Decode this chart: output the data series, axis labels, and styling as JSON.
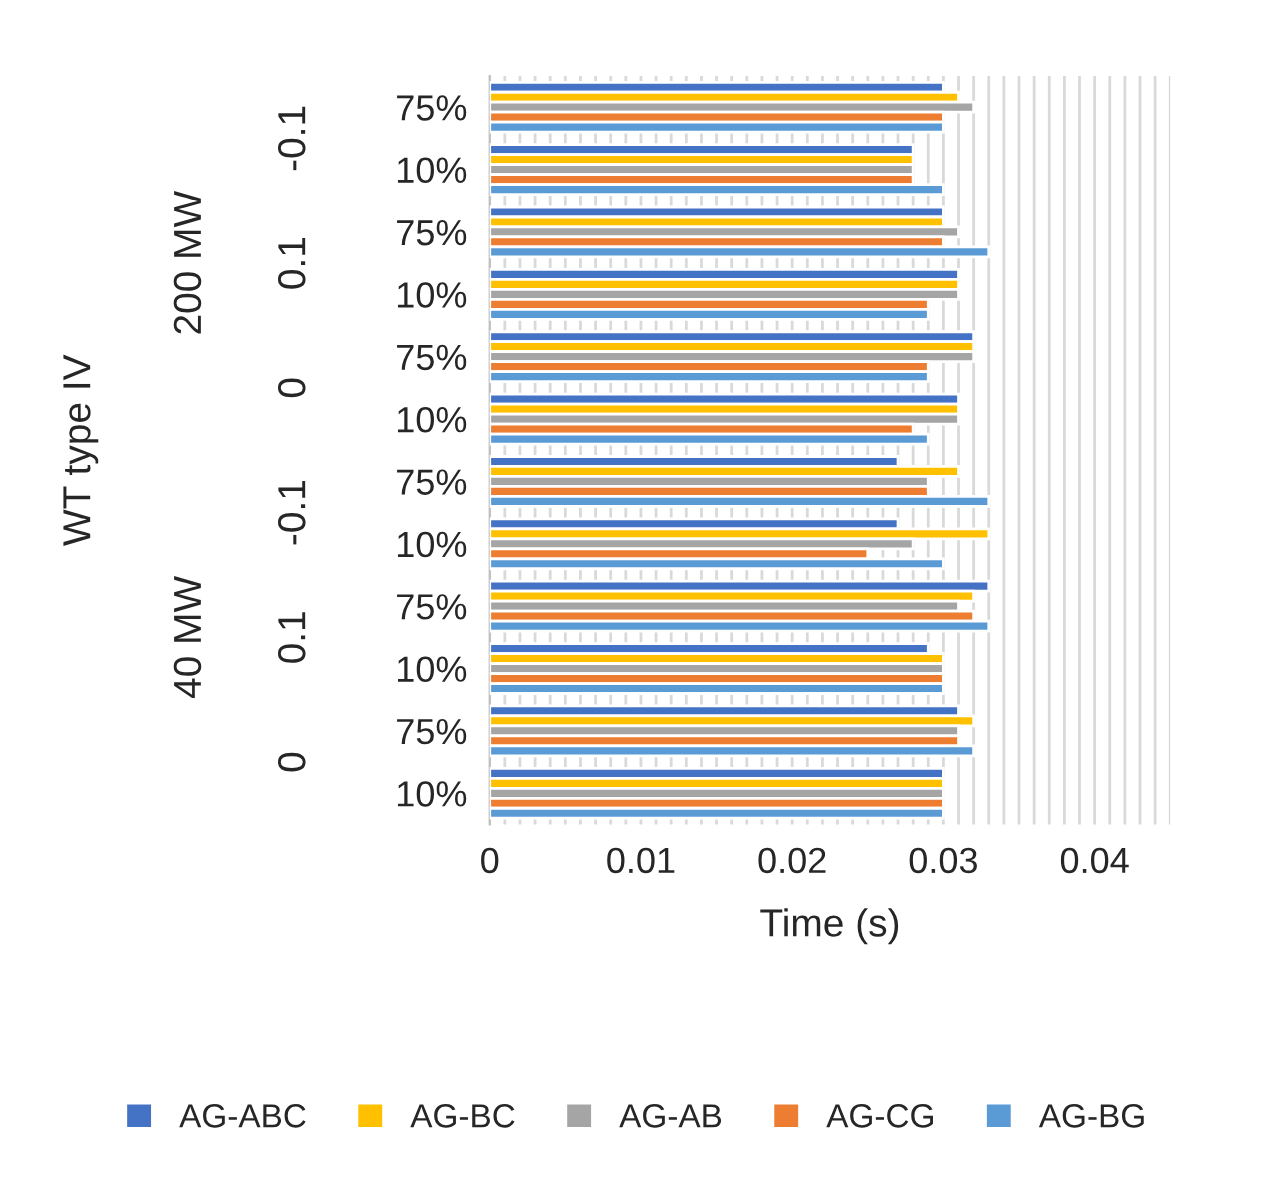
{
  "chart_data": {
    "type": "bar",
    "orientation": "horizontal",
    "xlabel": "Time (s)",
    "categories": [
      "75%",
      "10%",
      "75%",
      "10%",
      "75%",
      "10%",
      "75%",
      "10%",
      "75%",
      "10%",
      "75%",
      "10%"
    ],
    "annotations": [
      "WT type IV",
      "200 MW",
      "40 MW",
      "-0.1",
      "0.1",
      "0",
      "-0.1",
      "0.1",
      "0"
    ],
    "series": [
      {
        "name": "AG-ABC",
        "color": "#4472c4",
        "values": [
          0.03,
          0.028,
          0.03,
          0.031,
          0.032,
          0.031,
          0.027,
          0.027,
          0.033,
          0.029,
          0.031,
          0.03
        ]
      },
      {
        "name": "AG-BC",
        "color": "#ffc000",
        "values": [
          0.031,
          0.028,
          0.03,
          0.031,
          0.032,
          0.031,
          0.031,
          0.033,
          0.032,
          0.03,
          0.032,
          0.03
        ]
      },
      {
        "name": "AG-AB",
        "color": "#a5a5a5",
        "values": [
          0.032,
          0.028,
          0.031,
          0.031,
          0.032,
          0.031,
          0.029,
          0.028,
          0.031,
          0.03,
          0.031,
          0.03
        ]
      },
      {
        "name": "AG-CG",
        "color": "#ed7d31",
        "values": [
          0.03,
          0.028,
          0.03,
          0.029,
          0.029,
          0.028,
          0.029,
          0.025,
          0.032,
          0.03,
          0.031,
          0.03
        ]
      },
      {
        "name": "AG-BG",
        "color": "#5b9bd5",
        "values": [
          0.03,
          0.03,
          0.033,
          0.029,
          0.029,
          0.029,
          0.033,
          0.03,
          0.033,
          0.03,
          0.032,
          0.03
        ]
      }
    ],
    "xlim": [
      0,
      0.045
    ],
    "xticks": [
      0,
      {
        "value": 0.001,
        "label": null
      },
      {
        "value": 0.002,
        "label": null
      },
      {
        "value": 0.003,
        "label": null
      },
      {
        "value": 0.004,
        "label": null
      },
      {
        "value": 0.005,
        "label": null
      },
      {
        "value": 0.006,
        "label": null
      },
      {
        "value": 0.007,
        "label": null
      },
      {
        "value": 0.008,
        "label": null
      },
      {
        "value": 0.009,
        "label": null
      },
      0.01,
      {
        "value": 0.011,
        "label": null
      },
      {
        "value": 0.012,
        "label": null
      },
      {
        "value": 0.013,
        "label": null
      },
      {
        "value": 0.014,
        "label": null
      },
      {
        "value": 0.015,
        "label": null
      },
      {
        "value": 0.016,
        "label": null
      },
      {
        "value": 0.017,
        "label": null
      },
      {
        "value": 0.018,
        "label": null
      },
      {
        "value": 0.019,
        "label": null
      },
      0.02,
      {
        "value": 0.021,
        "label": null
      },
      {
        "value": 0.022,
        "label": null
      },
      {
        "value": 0.023,
        "label": null
      },
      {
        "value": 0.024,
        "label": null
      },
      {
        "value": 0.025,
        "label": null
      },
      {
        "value": 0.026,
        "label": null
      },
      {
        "value": 0.027,
        "label": null
      },
      {
        "value": 0.028,
        "label": null
      },
      {
        "value": 0.029,
        "label": null
      },
      0.03,
      {
        "value": 0.031,
        "label": null
      },
      {
        "value": 0.032,
        "label": null
      },
      {
        "value": 0.033,
        "label": null
      },
      {
        "value": 0.034,
        "label": null
      },
      {
        "value": 0.035,
        "label": null
      },
      {
        "value": 0.036,
        "label": null
      },
      {
        "value": 0.037,
        "label": null
      },
      {
        "value": 0.038,
        "label": null
      },
      {
        "value": 0.039,
        "label": null
      },
      0.04,
      {
        "value": 0.041,
        "label": null
      },
      {
        "value": 0.042,
        "label": null
      },
      {
        "value": 0.043,
        "label": null
      },
      {
        "value": 0.044,
        "label": null
      },
      {
        "value": 0.045,
        "label": null
      }
    ],
    "grid": "x",
    "legend": "bottom"
  }
}
